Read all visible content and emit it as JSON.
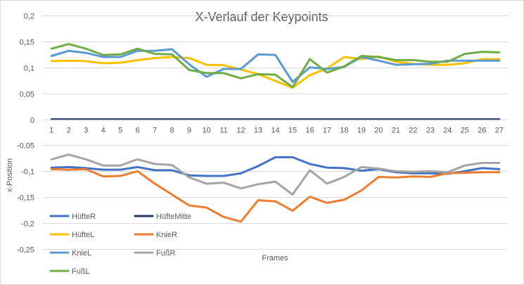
{
  "chart_data": {
    "type": "line",
    "title": "X-Verlauf der Keypoints",
    "xlabel": "Frames",
    "ylabel": "x-Position",
    "ylim": [
      -0.25,
      0.2
    ],
    "y_ticks": [
      "0,2",
      "0,15",
      "0,1",
      "0,05",
      "0",
      "-0,05",
      "-0,1",
      "-0,15",
      "-0,2",
      "-0,25"
    ],
    "y_tick_values": [
      0.2,
      0.15,
      0.1,
      0.05,
      0,
      -0.05,
      -0.1,
      -0.15,
      -0.2,
      -0.25
    ],
    "grid": true,
    "legend_position": "bottom-left",
    "categories": [
      "1",
      "2",
      "3",
      "4",
      "5",
      "6",
      "7",
      "8",
      "9",
      "10",
      "11",
      "12",
      "13",
      "14",
      "15",
      "16",
      "17",
      "18",
      "19",
      "20",
      "21",
      "22",
      "23",
      "24",
      "25",
      "26",
      "27"
    ],
    "series": [
      {
        "name": "HüfteR",
        "color": "#4472c4",
        "values": [
          -0.093,
          -0.092,
          -0.094,
          -0.097,
          -0.097,
          -0.092,
          -0.098,
          -0.098,
          -0.108,
          -0.109,
          -0.109,
          -0.104,
          -0.09,
          -0.073,
          -0.073,
          -0.086,
          -0.093,
          -0.094,
          -0.099,
          -0.096,
          -0.102,
          -0.104,
          -0.104,
          -0.105,
          -0.1,
          -0.094,
          -0.096
        ]
      },
      {
        "name": "HüfteMitte",
        "color": "#1f3864",
        "values": [
          0,
          0,
          0,
          0,
          0,
          0,
          0,
          0,
          0,
          0,
          0,
          0,
          0,
          0,
          0,
          0,
          0,
          0,
          0,
          0,
          0,
          0,
          0,
          0,
          0,
          0,
          0
        ]
      },
      {
        "name": "HüfteL",
        "color": "#ffc000",
        "values": [
          0.112,
          0.113,
          0.112,
          0.108,
          0.109,
          0.114,
          0.118,
          0.12,
          0.118,
          0.105,
          0.104,
          0.096,
          0.087,
          0.074,
          0.061,
          0.085,
          0.098,
          0.12,
          0.116,
          0.121,
          0.111,
          0.107,
          0.105,
          0.105,
          0.108,
          0.116,
          0.116
        ]
      },
      {
        "name": "KnieR",
        "color": "#ed7d31",
        "values": [
          -0.096,
          -0.097,
          -0.096,
          -0.11,
          -0.109,
          -0.1,
          -0.124,
          -0.145,
          -0.166,
          -0.17,
          -0.188,
          -0.197,
          -0.156,
          -0.158,
          -0.176,
          -0.149,
          -0.161,
          -0.155,
          -0.137,
          -0.111,
          -0.112,
          -0.11,
          -0.111,
          -0.104,
          -0.103,
          -0.102,
          -0.102
        ]
      },
      {
        "name": "KnieL",
        "color": "#5b9bd5",
        "values": [
          0.122,
          0.132,
          0.128,
          0.12,
          0.12,
          0.132,
          0.132,
          0.135,
          0.106,
          0.082,
          0.097,
          0.097,
          0.125,
          0.124,
          0.072,
          0.1,
          0.097,
          0.101,
          0.12,
          0.113,
          0.105,
          0.106,
          0.107,
          0.113,
          0.113,
          0.113,
          0.113
        ]
      },
      {
        "name": "FußR",
        "color": "#a5a5a5",
        "values": [
          -0.077,
          -0.068,
          -0.077,
          -0.089,
          -0.089,
          -0.077,
          -0.086,
          -0.088,
          -0.112,
          -0.124,
          -0.122,
          -0.133,
          -0.125,
          -0.12,
          -0.145,
          -0.098,
          -0.124,
          -0.111,
          -0.092,
          -0.095,
          -0.1,
          -0.101,
          -0.1,
          -0.102,
          -0.089,
          -0.084,
          -0.084
        ]
      },
      {
        "name": "FußL",
        "color": "#70ad47",
        "values": [
          0.136,
          0.145,
          0.136,
          0.124,
          0.125,
          0.136,
          0.126,
          0.125,
          0.095,
          0.089,
          0.089,
          0.079,
          0.087,
          0.086,
          0.062,
          0.116,
          0.09,
          0.102,
          0.122,
          0.12,
          0.114,
          0.114,
          0.111,
          0.111,
          0.126,
          0.13,
          0.129
        ]
      }
    ]
  }
}
